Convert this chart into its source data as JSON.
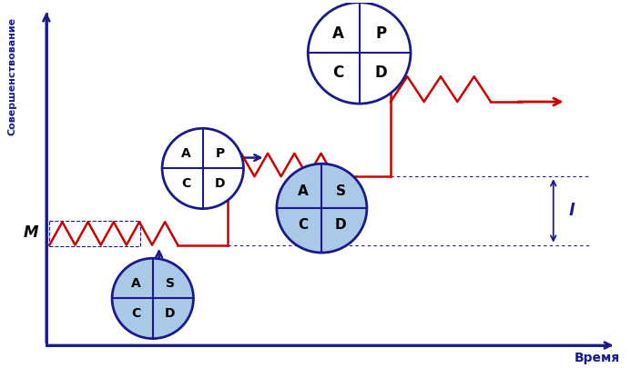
{
  "axis_color": "#1a1a8c",
  "red_color": "#cc0000",
  "blue_dark": "#1a1a8c",
  "blue_light": "#aac8e8",
  "bg_color": "#ffffff",
  "ylabel": "Совершенствование",
  "xlabel": "Время",
  "M_label": "M",
  "I_label": "l",
  "figsize": [
    6.93,
    4.05
  ],
  "dpi": 100,
  "xlim": [
    0,
    10
  ],
  "ylim": [
    0,
    10
  ]
}
